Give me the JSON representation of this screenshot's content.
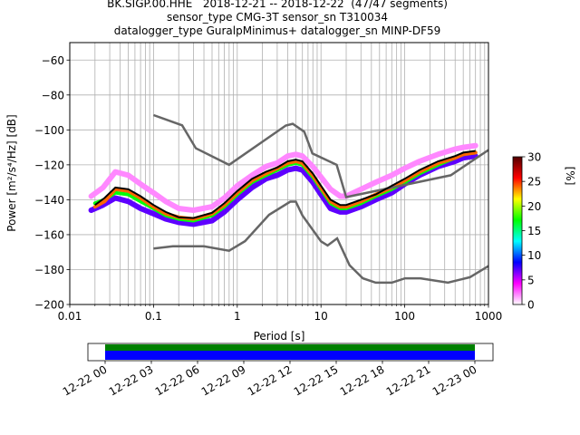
{
  "chart_data": {
    "type": "heatmap",
    "title_lines": [
      "BK.SIGP.00.HHE   2018-12-21 -- 2018-12-22  (47/47 segments)",
      "sensor_type CMG-3T sensor_sn T310034",
      "datalogger_type GuralpMinimus+ datalogger_sn MINP-DF59"
    ],
    "xlabel": "Period [s]",
    "ylabel": "Power [m²/s⁴/Hz] [dB]",
    "xscale": "log",
    "xlim": [
      0.01,
      1000
    ],
    "ylim": [
      -200,
      -50
    ],
    "grid": true,
    "x_ticks": [
      {
        "value": 0.01,
        "label": "0.01"
      },
      {
        "value": 0.1,
        "label": "0.1"
      },
      {
        "value": 1,
        "label": "1"
      },
      {
        "value": 10,
        "label": "10"
      },
      {
        "value": 100,
        "label": "100"
      },
      {
        "value": 1000,
        "label": "1000"
      }
    ],
    "y_ticks": [
      {
        "value": -60,
        "label": "−60"
      },
      {
        "value": -80,
        "label": "−80"
      },
      {
        "value": -100,
        "label": "−100"
      },
      {
        "value": -120,
        "label": "−120"
      },
      {
        "value": -140,
        "label": "−140"
      },
      {
        "value": -160,
        "label": "−160"
      },
      {
        "value": -180,
        "label": "−180"
      },
      {
        "value": -200,
        "label": "−200"
      }
    ],
    "colorbar": {
      "label": "[%]",
      "range": [
        0,
        30
      ],
      "ticks": [
        {
          "value": 0,
          "label": "0"
        },
        {
          "value": 5,
          "label": "5"
        },
        {
          "value": 10,
          "label": "10"
        },
        {
          "value": 15,
          "label": "15"
        },
        {
          "value": 20,
          "label": "20"
        },
        {
          "value": 25,
          "label": "25"
        },
        {
          "value": 30,
          "label": "30"
        }
      ],
      "stops": [
        "#ffffff",
        "#ff00ff",
        "#0000ff",
        "#00ffff",
        "#00ff00",
        "#ffff00",
        "#ff0000",
        "#500000"
      ]
    },
    "new_high_noise_model": {
      "color": "#666666",
      "points": [
        [
          0.1,
          -91.5
        ],
        [
          0.22,
          -97.4
        ],
        [
          0.32,
          -110.5
        ],
        [
          0.8,
          -120
        ],
        [
          3.8,
          -97.5
        ],
        [
          4.6,
          -96.5
        ],
        [
          6.3,
          -101
        ],
        [
          7.9,
          -113.5
        ],
        [
          15.4,
          -120
        ],
        [
          20,
          -138.5
        ],
        [
          354.8,
          -126
        ],
        [
          1000,
          -111.5
        ]
      ]
    },
    "new_low_noise_model": {
      "color": "#666666",
      "points": [
        [
          0.1,
          -168
        ],
        [
          0.17,
          -166.7
        ],
        [
          0.4,
          -166.7
        ],
        [
          0.8,
          -169.2
        ],
        [
          1.24,
          -163.7
        ],
        [
          2.4,
          -148.6
        ],
        [
          4.3,
          -141.1
        ],
        [
          5,
          -141.1
        ],
        [
          6,
          -149
        ],
        [
          10,
          -163.8
        ],
        [
          12,
          -166.2
        ],
        [
          15.6,
          -162.1
        ],
        [
          21.9,
          -177.5
        ],
        [
          31.6,
          -185
        ],
        [
          45,
          -187.5
        ],
        [
          70,
          -187.5
        ],
        [
          101,
          -185
        ],
        [
          154,
          -185
        ],
        [
          328,
          -187.5
        ],
        [
          600,
          -184.4
        ],
        [
          1000,
          -178
        ]
      ]
    },
    "mode_line": {
      "color": "#000000",
      "points": [
        [
          0.02,
          -143
        ],
        [
          0.026,
          -139
        ],
        [
          0.035,
          -133
        ],
        [
          0.05,
          -134
        ],
        [
          0.07,
          -138
        ],
        [
          0.1,
          -143
        ],
        [
          0.14,
          -147
        ],
        [
          0.2,
          -150
        ],
        [
          0.3,
          -150.5
        ],
        [
          0.5,
          -147.5
        ],
        [
          0.7,
          -142
        ],
        [
          1,
          -135
        ],
        [
          1.5,
          -128
        ],
        [
          2.2,
          -124
        ],
        [
          3,
          -121.5
        ],
        [
          4,
          -118
        ],
        [
          5,
          -117
        ],
        [
          6,
          -118
        ],
        [
          8,
          -125
        ],
        [
          10,
          -132
        ],
        [
          13,
          -140
        ],
        [
          17,
          -143
        ],
        [
          20,
          -143
        ],
        [
          30,
          -140
        ],
        [
          45,
          -137
        ],
        [
          70,
          -132
        ],
        [
          100,
          -128
        ],
        [
          150,
          -123
        ],
        [
          250,
          -118
        ],
        [
          400,
          -115
        ],
        [
          500,
          -113
        ],
        [
          700,
          -112
        ]
      ]
    },
    "density_bands": [
      {
        "pct": 7,
        "points": [
          [
            0.018,
            -146
          ],
          [
            0.025,
            -143
          ],
          [
            0.035,
            -139
          ],
          [
            0.05,
            -141
          ],
          [
            0.07,
            -145
          ],
          [
            0.1,
            -148
          ],
          [
            0.14,
            -151
          ],
          [
            0.2,
            -153
          ],
          [
            0.3,
            -154
          ],
          [
            0.5,
            -152
          ],
          [
            0.7,
            -147
          ],
          [
            1,
            -140
          ],
          [
            1.5,
            -133
          ],
          [
            2.2,
            -128
          ],
          [
            3,
            -126
          ],
          [
            4,
            -123
          ],
          [
            5,
            -122
          ],
          [
            6,
            -123
          ],
          [
            8,
            -130
          ],
          [
            10,
            -137
          ],
          [
            13,
            -145
          ],
          [
            17,
            -147
          ],
          [
            20,
            -147
          ],
          [
            30,
            -144
          ],
          [
            45,
            -140
          ],
          [
            70,
            -136
          ],
          [
            100,
            -131
          ],
          [
            150,
            -126
          ],
          [
            250,
            -121
          ],
          [
            400,
            -118
          ],
          [
            500,
            -116
          ],
          [
            700,
            -115
          ]
        ]
      },
      {
        "pct": 2,
        "points": [
          [
            0.018,
            -138
          ],
          [
            0.025,
            -133
          ],
          [
            0.035,
            -124
          ],
          [
            0.05,
            -126
          ],
          [
            0.07,
            -131
          ],
          [
            0.1,
            -136
          ],
          [
            0.14,
            -141
          ],
          [
            0.2,
            -145
          ],
          [
            0.3,
            -146
          ],
          [
            0.5,
            -144
          ],
          [
            0.7,
            -139
          ],
          [
            1,
            -132
          ],
          [
            1.5,
            -126
          ],
          [
            2.2,
            -121
          ],
          [
            3,
            -119
          ],
          [
            4,
            -115
          ],
          [
            5,
            -114
          ],
          [
            6,
            -115
          ],
          [
            8,
            -121
          ],
          [
            10,
            -127
          ],
          [
            13,
            -134
          ],
          [
            17,
            -138
          ],
          [
            20,
            -138
          ],
          [
            30,
            -134
          ],
          [
            45,
            -130
          ],
          [
            70,
            -126
          ],
          [
            100,
            -122
          ],
          [
            150,
            -118
          ],
          [
            250,
            -114
          ],
          [
            400,
            -111
          ],
          [
            500,
            -110
          ],
          [
            700,
            -109
          ]
        ]
      },
      {
        "pct": 17,
        "points": [
          [
            0.02,
            -142
          ],
          [
            0.026,
            -140
          ],
          [
            0.035,
            -136
          ],
          [
            0.05,
            -137
          ],
          [
            0.07,
            -141
          ],
          [
            0.1,
            -145
          ],
          [
            0.14,
            -149
          ],
          [
            0.2,
            -151
          ],
          [
            0.3,
            -152
          ],
          [
            0.5,
            -149
          ],
          [
            0.7,
            -144
          ],
          [
            1,
            -137
          ],
          [
            1.5,
            -130
          ],
          [
            2.2,
            -126
          ],
          [
            3,
            -123
          ],
          [
            4,
            -120
          ],
          [
            5,
            -119
          ],
          [
            6,
            -120
          ],
          [
            8,
            -127
          ],
          [
            10,
            -134
          ],
          [
            13,
            -142
          ],
          [
            17,
            -145
          ],
          [
            20,
            -145
          ],
          [
            30,
            -142
          ],
          [
            45,
            -138
          ],
          [
            70,
            -134
          ],
          [
            100,
            -130
          ],
          [
            150,
            -125
          ],
          [
            250,
            -120
          ],
          [
            400,
            -116
          ],
          [
            500,
            -114
          ],
          [
            700,
            -113
          ]
        ]
      },
      {
        "pct": 24,
        "points": [
          [
            0.02,
            -144
          ],
          [
            0.026,
            -141
          ],
          [
            0.035,
            -134
          ],
          [
            0.05,
            -135
          ],
          [
            0.07,
            -139
          ],
          [
            0.1,
            -144
          ],
          [
            0.14,
            -148
          ],
          [
            0.2,
            -150
          ],
          [
            0.3,
            -151
          ],
          [
            0.5,
            -148
          ],
          [
            0.7,
            -143
          ],
          [
            1,
            -136
          ],
          [
            1.5,
            -129
          ],
          [
            2.2,
            -125
          ],
          [
            3,
            -122
          ],
          [
            4,
            -119
          ],
          [
            5,
            -118
          ],
          [
            6,
            -119
          ],
          [
            8,
            -126
          ],
          [
            10,
            -133
          ],
          [
            13,
            -141
          ],
          [
            17,
            -144
          ],
          [
            20,
            -144
          ],
          [
            30,
            -141
          ],
          [
            45,
            -137
          ],
          [
            70,
            -133
          ],
          [
            100,
            -129
          ],
          [
            150,
            -124
          ],
          [
            250,
            -119
          ],
          [
            400,
            -116
          ],
          [
            500,
            -114
          ],
          [
            700,
            -113
          ]
        ]
      }
    ],
    "time_axis": {
      "start_label": "12-22 00",
      "ticks": [
        "12-22 00",
        "12-22 03",
        "12-22 06",
        "12-22 09",
        "12-22 12",
        "12-22 15",
        "12-22 18",
        "12-22 21",
        "12-23 00"
      ],
      "coverage_color": "#0000ff",
      "gaps_color": "#008000"
    }
  }
}
